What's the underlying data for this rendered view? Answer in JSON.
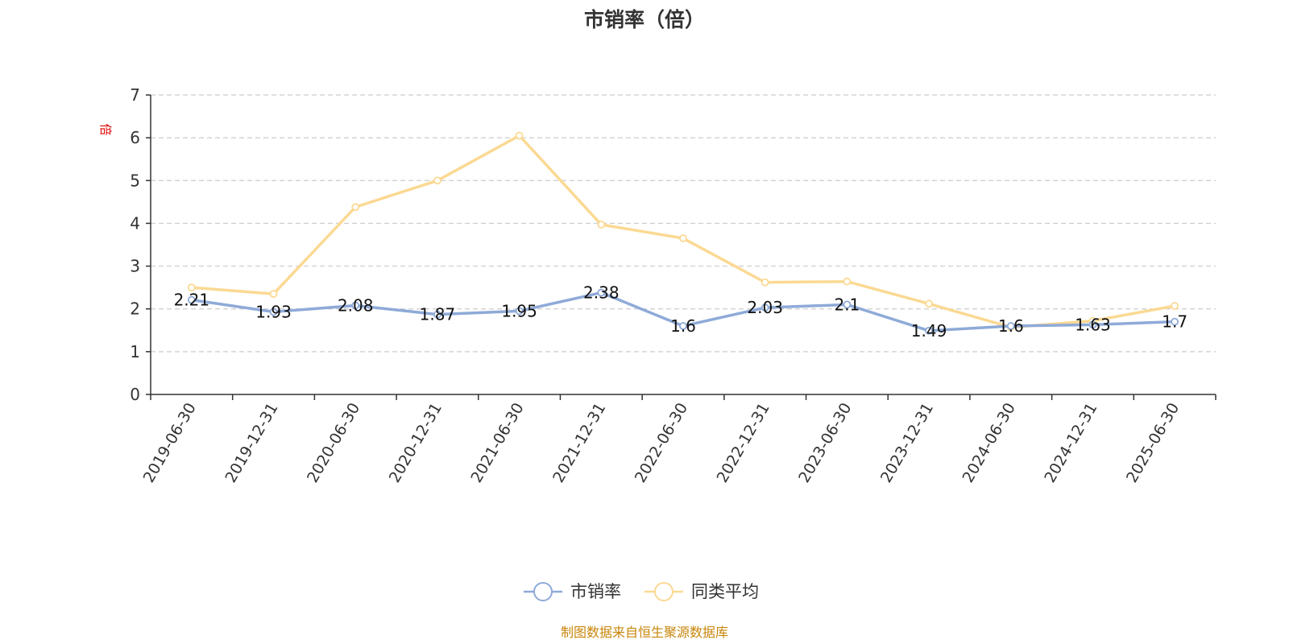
{
  "chart_data": {
    "type": "line",
    "title": "市销率（倍）",
    "ylabel": "倍",
    "xlabel": "",
    "ylim": [
      0,
      7
    ],
    "yticks": [
      0,
      1,
      2,
      3,
      4,
      5,
      6,
      7
    ],
    "grid": true,
    "legend_position": "bottom-center",
    "categories": [
      "2019-06-30",
      "2019-12-31",
      "2020-06-30",
      "2020-12-31",
      "2021-06-30",
      "2021-12-31",
      "2022-06-30",
      "2022-12-31",
      "2023-06-30",
      "2023-12-31",
      "2024-06-30",
      "2024-12-31",
      "2025-06-30"
    ],
    "series": [
      {
        "name": "市销率",
        "color": "#8eaad8",
        "values": [
          2.21,
          1.93,
          2.08,
          1.87,
          1.95,
          2.38,
          1.6,
          2.03,
          2.1,
          1.49,
          1.6,
          1.63,
          1.7
        ],
        "show_labels": true
      },
      {
        "name": "同类平均",
        "color": "#fbd993",
        "values": [
          2.5,
          2.35,
          4.38,
          5.0,
          6.05,
          3.97,
          3.65,
          2.62,
          2.64,
          2.12,
          1.57,
          1.72,
          2.07
        ],
        "show_labels": false
      }
    ],
    "source": "制图数据来自恒生聚源数据库"
  }
}
